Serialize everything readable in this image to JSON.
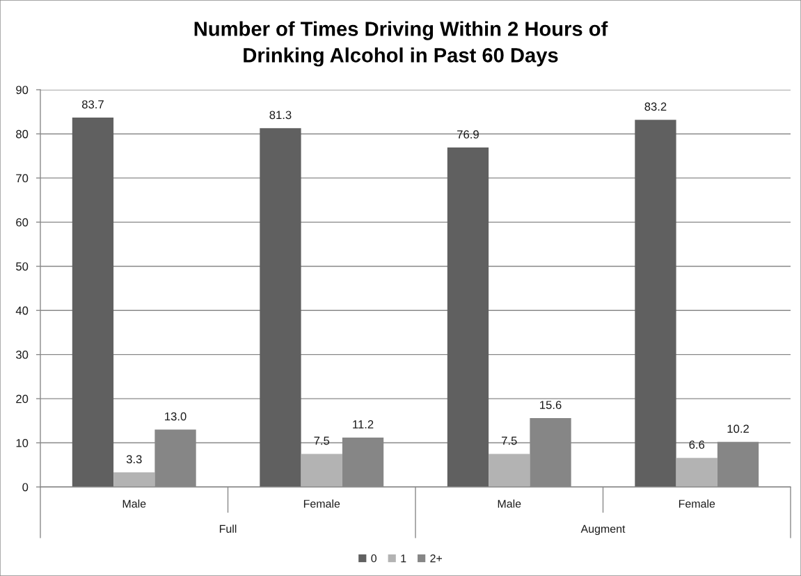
{
  "chart_data": {
    "type": "bar",
    "title": "Number of Times Driving Within 2 Hours of\nDrinking Alcohol in Past 60 Days",
    "categories": [
      "Male",
      "Female",
      "Male",
      "Female"
    ],
    "annotations": [
      "Full",
      "Augment"
    ],
    "series": [
      {
        "name": "0",
        "color": "#606060",
        "values": [
          83.7,
          81.3,
          76.9,
          83.2
        ],
        "value_labels": [
          "83.7",
          "81.3",
          "76.9",
          "83.2"
        ]
      },
      {
        "name": "1",
        "color": "#b3b3b3",
        "values": [
          3.3,
          7.5,
          7.5,
          6.6
        ],
        "value_labels": [
          "3.3",
          "7.5",
          "7.5",
          "6.6"
        ]
      },
      {
        "name": "2+",
        "color": "#868686",
        "values": [
          13.0,
          11.2,
          15.6,
          10.2
        ],
        "value_labels": [
          "13.0",
          "11.2",
          "15.6",
          "10.2"
        ]
      }
    ],
    "ylim": [
      0,
      90
    ],
    "yticks": [
      0,
      10,
      20,
      30,
      40,
      50,
      60,
      70,
      80,
      90
    ],
    "grid": "y",
    "legend": "bottom"
  }
}
